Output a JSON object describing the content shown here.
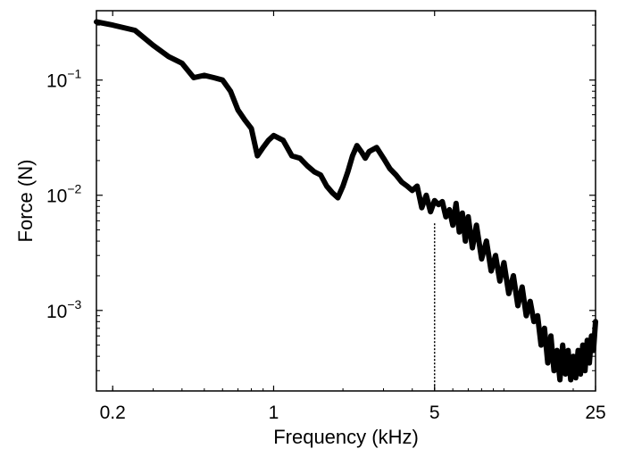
{
  "chart_data": {
    "type": "line",
    "xlabel": "Frequency (kHz)",
    "ylabel": "Force (N)",
    "xscale": "log",
    "yscale": "log",
    "xlim": [
      0.17,
      25
    ],
    "ylim": [
      0.0002,
      0.4
    ],
    "grid": false,
    "x_ticks": [
      {
        "value": 0.2,
        "label": "0.2"
      },
      {
        "value": 1,
        "label": "1"
      },
      {
        "value": 5,
        "label": "5"
      },
      {
        "value": 25,
        "label": "25"
      }
    ],
    "y_ticks": [
      {
        "value": 0.1,
        "base": "10",
        "exp": "−1"
      },
      {
        "value": 0.01,
        "base": "10",
        "exp": "−2"
      },
      {
        "value": 0.001,
        "base": "10",
        "exp": "−3"
      }
    ],
    "series": [
      {
        "color": "#000000",
        "x": [
          0.17,
          0.2,
          0.25,
          0.3,
          0.35,
          0.4,
          0.45,
          0.5,
          0.55,
          0.6,
          0.65,
          0.7,
          0.75,
          0.8,
          0.85,
          0.9,
          0.95,
          1.0,
          1.1,
          1.2,
          1.3,
          1.4,
          1.5,
          1.6,
          1.7,
          1.8,
          1.9,
          2.0,
          2.1,
          2.2,
          2.3,
          2.4,
          2.5,
          2.6,
          2.8,
          3.0,
          3.2,
          3.4,
          3.6,
          3.8,
          4.0,
          4.2,
          4.4,
          4.6,
          4.8,
          5.0,
          5.2,
          5.4,
          5.6,
          5.8,
          6.0,
          6.2,
          6.4,
          6.6,
          6.8,
          7.0,
          7.3,
          7.6,
          8.0,
          8.4,
          8.8,
          9.2,
          9.6,
          10.0,
          10.5,
          11.0,
          11.5,
          12.0,
          12.5,
          13.0,
          13.5,
          14.0,
          14.5,
          15.0,
          15.5,
          16.0,
          16.5,
          17.0,
          17.5,
          18.0,
          18.5,
          19.0,
          19.5,
          20.0,
          20.5,
          21.0,
          21.5,
          22.0,
          22.5,
          23.0,
          23.5,
          24.0,
          24.5,
          25.0
        ],
        "y": [
          0.32,
          0.3,
          0.27,
          0.2,
          0.16,
          0.14,
          0.105,
          0.11,
          0.105,
          0.1,
          0.08,
          0.055,
          0.045,
          0.038,
          0.022,
          0.026,
          0.03,
          0.033,
          0.03,
          0.022,
          0.021,
          0.018,
          0.016,
          0.015,
          0.012,
          0.0105,
          0.0095,
          0.012,
          0.016,
          0.022,
          0.027,
          0.024,
          0.021,
          0.024,
          0.026,
          0.021,
          0.017,
          0.015,
          0.013,
          0.012,
          0.011,
          0.012,
          0.0078,
          0.01,
          0.0072,
          0.009,
          0.0083,
          0.0088,
          0.0065,
          0.0075,
          0.0055,
          0.0085,
          0.0048,
          0.007,
          0.004,
          0.0065,
          0.0035,
          0.0055,
          0.0028,
          0.004,
          0.0022,
          0.003,
          0.0018,
          0.0026,
          0.0014,
          0.002,
          0.0011,
          0.0016,
          0.0009,
          0.0012,
          0.0008,
          0.0009,
          0.0005,
          0.0007,
          0.00035,
          0.0006,
          0.0003,
          0.00045,
          0.00025,
          0.0005,
          0.00028,
          0.00045,
          0.00025,
          0.0004,
          0.00026,
          0.00045,
          0.00028,
          0.0005,
          0.0003,
          0.00055,
          0.00035,
          0.0006,
          0.00045,
          0.0008
        ]
      }
    ],
    "annotations": [
      {
        "type": "dotted-vertical-line",
        "x": 5,
        "y_top": 0.0057
      }
    ]
  }
}
